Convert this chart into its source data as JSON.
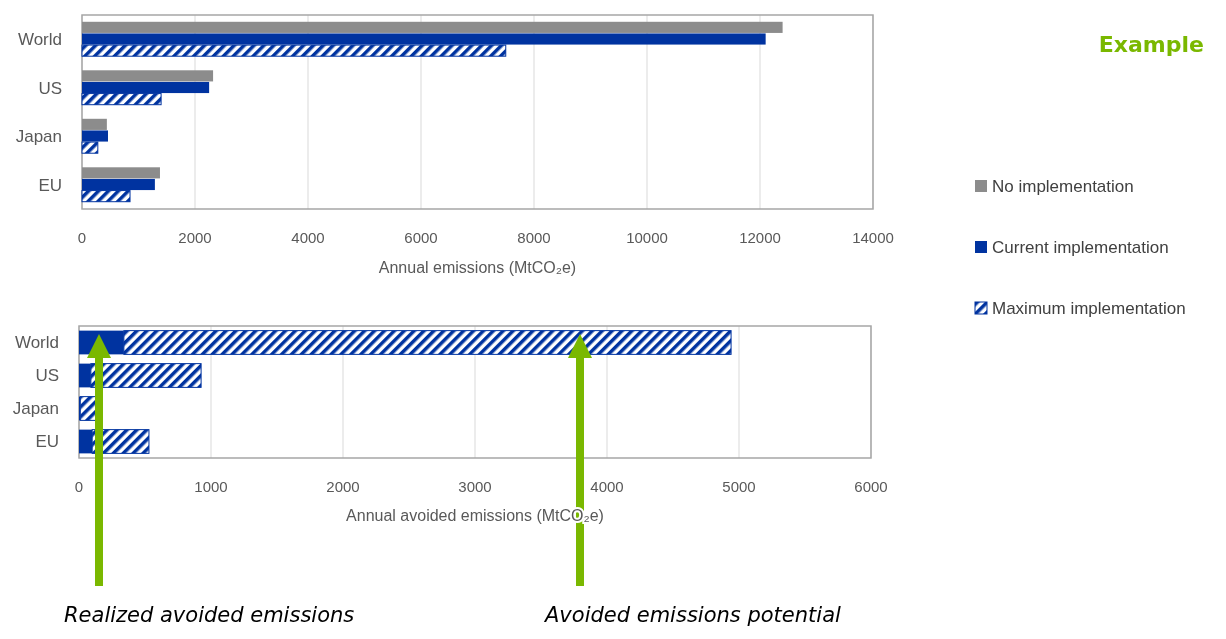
{
  "chart_data": [
    {
      "type": "bar",
      "orientation": "horizontal",
      "annotations": [
        "Example"
      ],
      "categories": [
        "World",
        "US",
        "Japan",
        "EU"
      ],
      "xlabel": "Annual emissions (MtCO₂e)",
      "xlim": [
        0,
        14000
      ],
      "xticks": [
        0,
        2000,
        4000,
        6000,
        8000,
        10000,
        12000,
        14000
      ],
      "grid": "x",
      "legend": "right",
      "series": [
        {
          "name": "No implementation",
          "color": "#8c8c8c",
          "values": [
            12400,
            2320,
            440,
            1380
          ]
        },
        {
          "name": "Current implementation",
          "color": "#0033a0",
          "values": [
            12100,
            2250,
            460,
            1290
          ]
        },
        {
          "name": "Maximum implementation",
          "color": "#0033a0",
          "values": [
            7500,
            1400,
            280,
            850
          ]
        }
      ]
    },
    {
      "type": "bar",
      "orientation": "horizontal",
      "stacked": true,
      "categories": [
        "World",
        "US",
        "Japan",
        "EU"
      ],
      "xlabel": "Annual avoided emissions (MtCO₂e)",
      "xlim": [
        0,
        6000
      ],
      "xticks": [
        0,
        1000,
        2000,
        3000,
        4000,
        5000,
        6000
      ],
      "grid": "x",
      "annotations": [
        "Realized avoided emissions",
        "Avoided emissions potential"
      ],
      "series": [
        {
          "color": "#0033a0",
          "values": [
            340,
            90,
            10,
            100
          ]
        },
        {
          "color": "#0033a0",
          "values": [
            4600,
            835,
            120,
            430
          ]
        }
      ]
    }
  ]
}
